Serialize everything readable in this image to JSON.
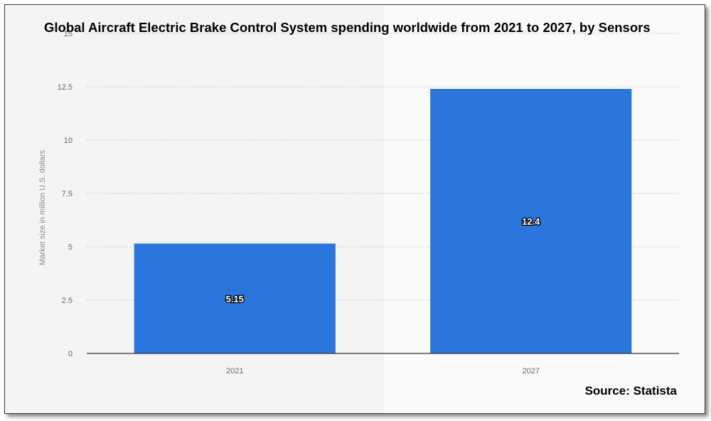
{
  "chart_data": {
    "type": "bar",
    "title": "Global Aircraft Electric Brake Control System spending worldwide from 2021 to 2027, by Sensors",
    "categories": [
      "2021",
      "2027"
    ],
    "values": [
      5.15,
      12.4
    ],
    "data_labels": [
      "5.15",
      "12.4"
    ],
    "xlabel": "",
    "ylabel": "Market size in million U.S. dollars",
    "ylim": [
      0,
      15
    ],
    "yticks": [
      "0",
      "2.5",
      "5",
      "7.5",
      "10",
      "12.5",
      "15"
    ],
    "grid": true,
    "legend": "none",
    "source": "Source: Statista"
  },
  "colors": {
    "bar": "#2a76dd",
    "plot_background": "#f4f4f4",
    "highlight_band": "#fafafa",
    "gridline": "#cccccc",
    "axis_line": "#333333"
  }
}
